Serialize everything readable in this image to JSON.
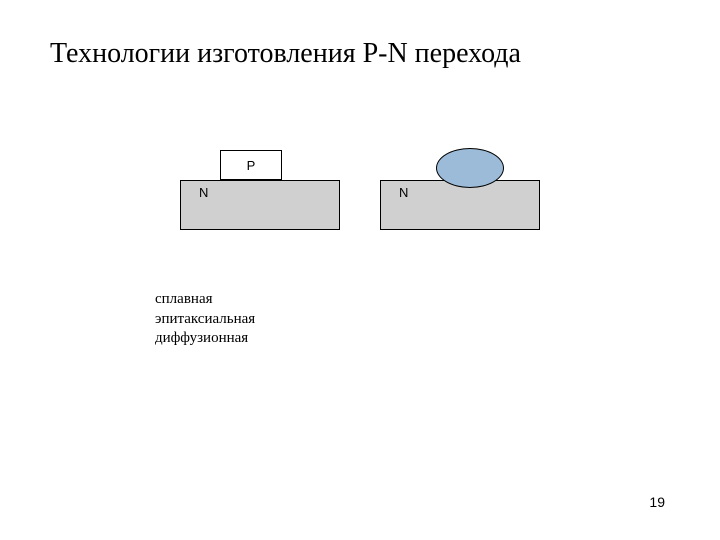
{
  "title": "Технологии изготовления P-N перехода",
  "diagram": {
    "left": {
      "p_label": "P",
      "n_label": "N",
      "p_box_bg": "#ffffff",
      "n_box_bg": "#d0d0d0",
      "border_color": "#000000"
    },
    "right": {
      "n_label": "N",
      "ellipse_bg": "#9bbbd9",
      "n_box_bg": "#d0d0d0",
      "border_color": "#000000"
    }
  },
  "methods": {
    "item1": "сплавная",
    "item2": "эпитаксиальная",
    "item3": "диффузионная"
  },
  "page_number": "19",
  "styling": {
    "title_fontsize": 28,
    "list_fontsize": 15,
    "label_fontsize": 13,
    "background": "#ffffff",
    "text_color": "#000000"
  }
}
